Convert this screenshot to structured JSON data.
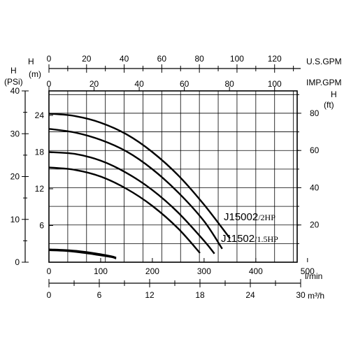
{
  "chart_data": {
    "type": "line",
    "title": "",
    "colors": {
      "line": "#000000",
      "grid": "#000000",
      "background": "#ffffff"
    },
    "grid": true,
    "axes": {
      "top_gpm": {
        "unit": "U.S.GPM",
        "ticks": [
          "0",
          "20",
          "40",
          "60",
          "80",
          "100",
          "120"
        ],
        "range": [
          0,
          132
        ]
      },
      "top_imp": {
        "unit_h": "H",
        "unit_m": "(m)",
        "unit": "IMP.GPM",
        "ticks": [
          "0",
          "20",
          "40",
          "60",
          "80",
          "100"
        ],
        "range": [
          0,
          110
        ]
      },
      "left_psi": {
        "unit_h": "H",
        "unit": "(PSi)",
        "ticks": [
          "0",
          "10",
          "20",
          "30",
          "40"
        ],
        "range": [
          0,
          40
        ]
      },
      "left_m": {
        "ticks": [
          "6",
          "12",
          "18",
          "24"
        ],
        "range": [
          0,
          28
        ]
      },
      "right_ft": {
        "unit_h": "H",
        "unit": "(ft)",
        "ticks": [
          "20",
          "40",
          "60",
          "80"
        ],
        "range": [
          0,
          92
        ]
      },
      "bottom_lmin": {
        "unit": "l/min",
        "ticks": [
          "0",
          "100",
          "200",
          "300",
          "400",
          "500"
        ],
        "range": [
          0,
          480
        ]
      },
      "bottom_m3h": {
        "unit": "m³/h",
        "ticks": [
          "0",
          "6",
          "12",
          "18",
          "24",
          "30"
        ],
        "range": [
          0,
          30
        ]
      }
    },
    "x_unit": "l/min",
    "y_unit": "m",
    "series": [
      {
        "name": "J15002/2HP",
        "model": "J15002",
        "power": "/2HP",
        "x": [
          0,
          50,
          100,
          150,
          200,
          250,
          300,
          350
        ],
        "y": [
          24.3,
          23.9,
          22.8,
          20.9,
          18.0,
          14.2,
          9.4,
          3.9
        ]
      },
      {
        "model_only": true,
        "x": [
          0,
          50,
          100,
          150,
          200,
          250,
          300,
          335
        ],
        "y": [
          21.8,
          21.2,
          20.0,
          18.1,
          15.2,
          11.4,
          6.7,
          2.2
        ]
      },
      {
        "name": "J11502/1.5HP",
        "model": "J11502",
        "power": "/1.5HP",
        "x": [
          0,
          50,
          100,
          150,
          200,
          250,
          300,
          320
        ],
        "y": [
          18.0,
          17.7,
          16.6,
          14.6,
          11.8,
          8.1,
          3.5,
          1.4
        ]
      },
      {
        "model_only": true,
        "x": [
          0,
          50,
          100,
          150,
          200,
          250,
          292
        ],
        "y": [
          15.5,
          15.1,
          14.0,
          12.0,
          9.2,
          5.5,
          1.5
        ]
      }
    ],
    "npsh_curves": [
      {
        "x": [
          0,
          30,
          60,
          90,
          120,
          130
        ],
        "y": [
          2.1,
          2.0,
          1.8,
          1.45,
          1.0,
          0.75
        ]
      },
      {
        "x": [
          0,
          30,
          60,
          90,
          120,
          130
        ],
        "y": [
          1.95,
          1.85,
          1.6,
          1.25,
          0.85,
          0.6
        ]
      }
    ]
  }
}
